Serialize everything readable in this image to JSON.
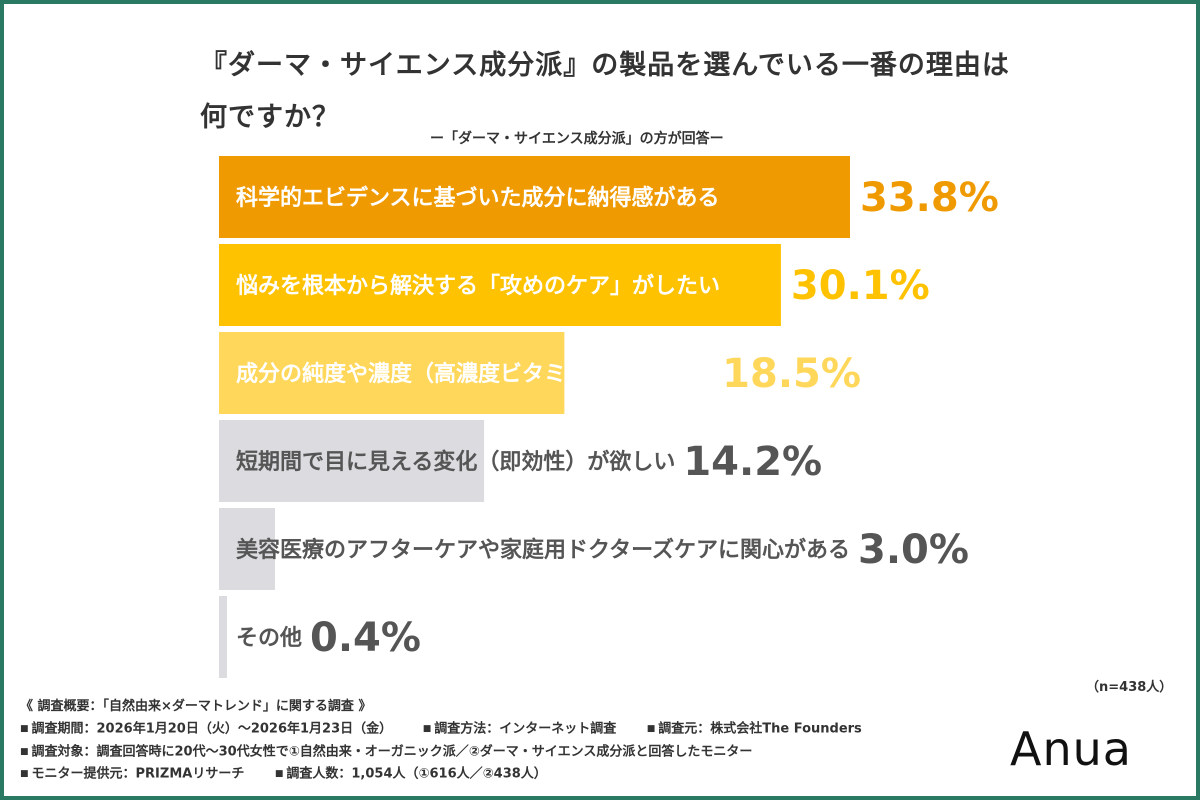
{
  "title": "『ダーマ・サイエンス成分派』の製品を選んでいる一番の理由は何ですか？",
  "subtitle": "ー「ダーマ・サイエンス成分派」の方が回答ー",
  "sample": "（n=438人）",
  "chart_data": {
    "type": "bar",
    "orientation": "horizontal",
    "categories": [
      "科学的エビデンスに基づいた成分に納得感がある",
      "悩みを根本から解決する「攻めのケア」がしたい",
      "成分の純度や濃度（高濃度ビタミンC等）に期待",
      "短期間で目に見える変化（即効性）が欲しい",
      "美容医療のアフターケアや家庭用ドクターズケアに関心がある",
      "その他"
    ],
    "values": [
      33.8,
      30.1,
      18.5,
      14.2,
      3.0,
      0.4
    ],
    "value_labels": [
      "33.8%",
      "30.1%",
      "18.5%",
      "14.2%",
      "3.0%",
      "0.4%"
    ],
    "bar_colors": [
      "#ef9a00",
      "#ffc200",
      "#ffd75a",
      "#dcdbe0",
      "#dcdbe0",
      "#dcdbe0"
    ],
    "label_colors": [
      "#ffffff",
      "#ffffff",
      "#ffffff",
      "#555555",
      "#555555",
      "#555555"
    ],
    "value_colors": [
      "#ef9a00",
      "#ffc200",
      "#ffd75a",
      "#555555",
      "#555555",
      "#555555"
    ],
    "xlim": [
      0,
      40
    ],
    "grid": false,
    "legend": "none"
  },
  "footer": {
    "survey_title": "《 調査概要：「自然由来×ダーマトレンド」に関する調査 》",
    "period": "調査期間：2026年1月20日（火）〜2026年1月23日（金）",
    "method": "調査方法：インターネット調査",
    "source": "調査元：株式会社The Founders",
    "target": "調査対象：調査回答時に20代〜30代女性で①自然由来・オーガニック派／②ダーマ・サイエンス成分派と回答したモニター",
    "provider": "モニター提供元：PRIZMAリサーチ",
    "count": "調査人数：1,054人（①616人／②438人）"
  },
  "brand": {
    "logo_text": "Anua",
    "frame_color": "#2a7a63"
  }
}
